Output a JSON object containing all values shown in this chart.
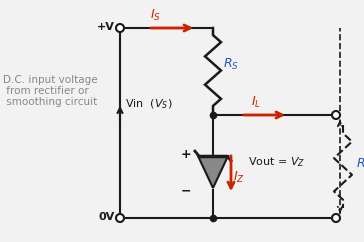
{
  "bg_color": "#f2f2f2",
  "line_color": "#1a1a1a",
  "dark_red": "#cc2200",
  "blue": "#2255cc",
  "gray": "#888888",
  "label_dc": "D.C. input voltage\n  from rectifier or\n  smoothing circuit",
  "label_pv": "+V",
  "label_0v": "0V",
  "figw": 3.64,
  "figh": 2.42,
  "dpi": 100
}
